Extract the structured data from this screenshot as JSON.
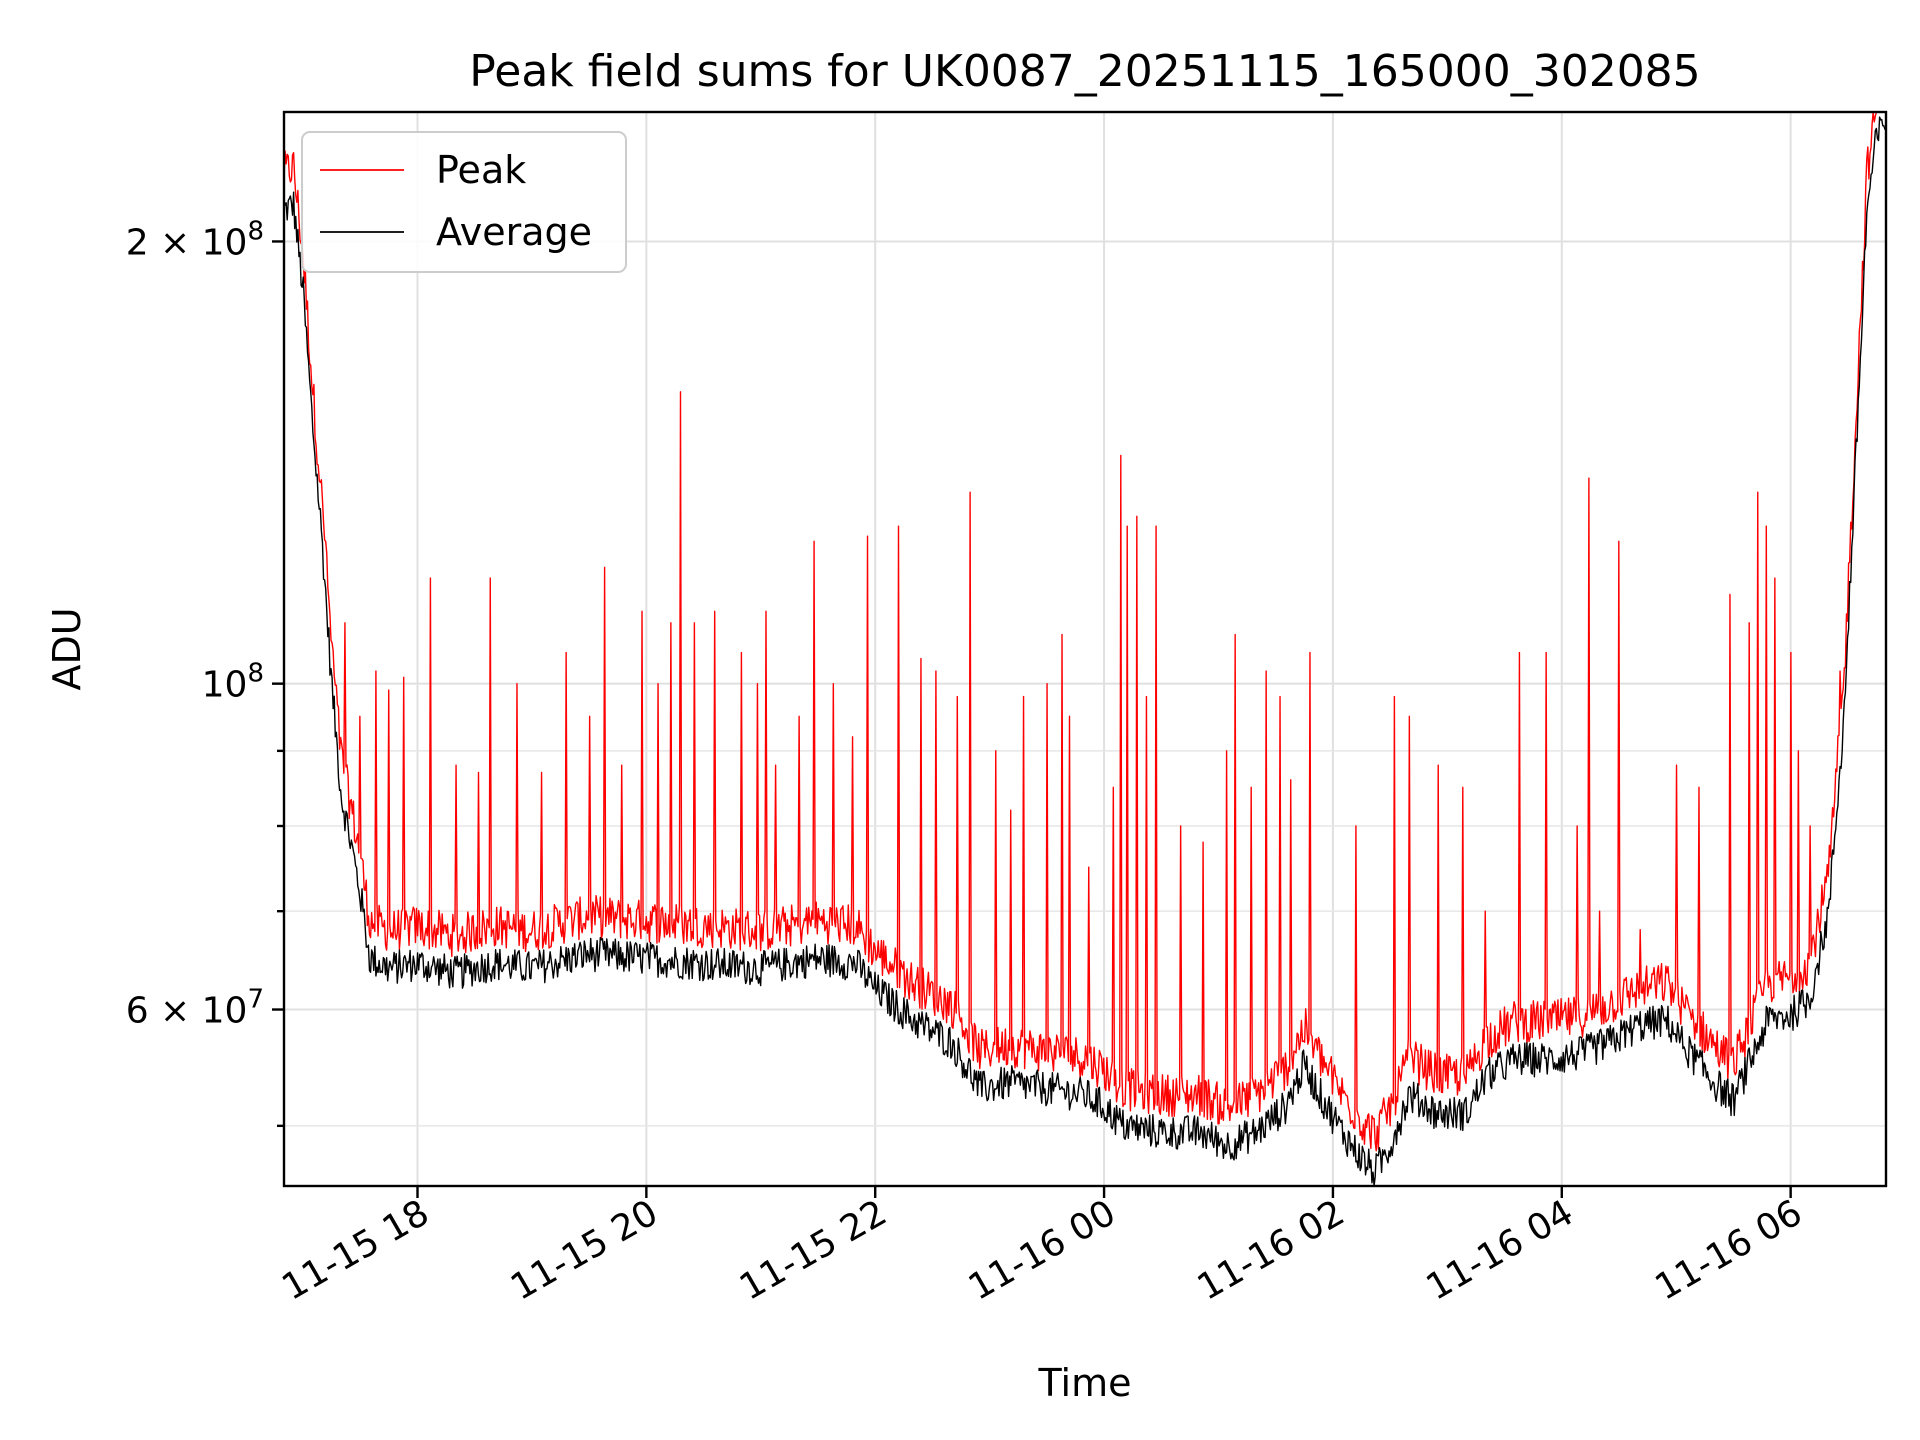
{
  "chart_data": {
    "type": "line",
    "title": "Peak field sums for UK0087_20251115_165000_302085",
    "xlabel": "Time",
    "ylabel": "ADU",
    "yscale": "log",
    "xlim": [
      "2025-11-15T16:50",
      "2025-11-16T06:50"
    ],
    "ylim": [
      45500000,
      245000000
    ],
    "grid": true,
    "legend_position": "top-left",
    "x_ticks": [
      {
        "label": "11-15 18",
        "t": "2025-11-15T18:00"
      },
      {
        "label": "11-15 20",
        "t": "2025-11-15T20:00"
      },
      {
        "label": "11-15 22",
        "t": "2025-11-15T22:00"
      },
      {
        "label": "11-16 00",
        "t": "2025-11-16T00:00"
      },
      {
        "label": "11-16 02",
        "t": "2025-11-16T02:00"
      },
      {
        "label": "11-16 04",
        "t": "2025-11-16T04:00"
      },
      {
        "label": "11-16 06",
        "t": "2025-11-16T06:00"
      }
    ],
    "y_ticks": [
      {
        "label_base": "2",
        "label_exp": "8",
        "value": 200000000
      },
      {
        "label_base": "",
        "label_exp": "8",
        "value": 100000000
      },
      {
        "label_base": "6",
        "label_exp": "7",
        "value": 60000000
      }
    ],
    "y_minor_ticks": [
      50000000,
      70000000,
      80000000,
      90000000
    ],
    "series": [
      {
        "name": "Peak",
        "color": "#ff0000",
        "baseline_offset": 1.025,
        "spikes": [
          [
            "2025-11-15T16:56",
            215000000
          ],
          [
            "2025-11-15T17:12",
            125000000
          ],
          [
            "2025-11-15T17:22",
            110000000
          ],
          [
            "2025-11-15T17:30",
            95000000
          ],
          [
            "2025-11-15T17:38",
            102000000
          ],
          [
            "2025-11-15T17:45",
            99000000
          ],
          [
            "2025-11-15T17:53",
            101000000
          ],
          [
            "2025-11-15T18:07",
            118000000
          ],
          [
            "2025-11-15T18:20",
            88000000
          ],
          [
            "2025-11-15T18:32",
            87000000
          ],
          [
            "2025-11-15T18:38",
            118000000
          ],
          [
            "2025-11-15T18:52",
            100000000
          ],
          [
            "2025-11-15T19:05",
            87000000
          ],
          [
            "2025-11-15T19:18",
            105000000
          ],
          [
            "2025-11-15T19:30",
            95000000
          ],
          [
            "2025-11-15T19:38",
            120000000
          ],
          [
            "2025-11-15T19:47",
            88000000
          ],
          [
            "2025-11-15T19:58",
            112000000
          ],
          [
            "2025-11-15T20:06",
            100000000
          ],
          [
            "2025-11-15T20:13",
            110000000
          ],
          [
            "2025-11-15T20:18",
            158000000
          ],
          [
            "2025-11-15T20:25",
            110000000
          ],
          [
            "2025-11-15T20:36",
            112000000
          ],
          [
            "2025-11-15T20:50",
            105000000
          ],
          [
            "2025-11-15T20:58",
            100000000
          ],
          [
            "2025-11-15T21:03",
            112000000
          ],
          [
            "2025-11-15T21:08",
            88000000
          ],
          [
            "2025-11-15T21:20",
            95000000
          ],
          [
            "2025-11-15T21:28",
            125000000
          ],
          [
            "2025-11-15T21:38",
            100000000
          ],
          [
            "2025-11-15T21:48",
            92000000
          ],
          [
            "2025-11-15T21:56",
            126000000
          ],
          [
            "2025-11-15T22:12",
            128000000
          ],
          [
            "2025-11-15T22:24",
            104000000
          ],
          [
            "2025-11-15T22:32",
            102000000
          ],
          [
            "2025-11-15T22:43",
            98000000
          ],
          [
            "2025-11-15T22:50",
            135000000
          ],
          [
            "2025-11-15T23:03",
            90000000
          ],
          [
            "2025-11-15T23:11",
            82000000
          ],
          [
            "2025-11-15T23:18",
            98000000
          ],
          [
            "2025-11-15T23:30",
            100000000
          ],
          [
            "2025-11-15T23:38",
            108000000
          ],
          [
            "2025-11-15T23:42",
            95000000
          ],
          [
            "2025-11-15T23:52",
            75000000
          ],
          [
            "2025-11-16T00:05",
            85000000
          ],
          [
            "2025-11-16T00:09",
            143000000
          ],
          [
            "2025-11-16T00:12",
            128000000
          ],
          [
            "2025-11-16T00:17",
            130000000
          ],
          [
            "2025-11-16T00:22",
            98000000
          ],
          [
            "2025-11-16T00:27",
            128000000
          ],
          [
            "2025-11-16T00:40",
            80000000
          ],
          [
            "2025-11-16T00:52",
            78000000
          ],
          [
            "2025-11-16T01:04",
            90000000
          ],
          [
            "2025-11-16T01:09",
            108000000
          ],
          [
            "2025-11-16T01:17",
            85000000
          ],
          [
            "2025-11-16T01:25",
            102000000
          ],
          [
            "2025-11-16T01:32",
            98000000
          ],
          [
            "2025-11-16T01:38",
            86000000
          ],
          [
            "2025-11-16T01:48",
            105000000
          ],
          [
            "2025-11-16T02:12",
            80000000
          ],
          [
            "2025-11-16T02:32",
            98000000
          ],
          [
            "2025-11-16T02:40",
            95000000
          ],
          [
            "2025-11-16T02:55",
            88000000
          ],
          [
            "2025-11-16T03:08",
            85000000
          ],
          [
            "2025-11-16T03:20",
            70000000
          ],
          [
            "2025-11-16T03:38",
            105000000
          ],
          [
            "2025-11-16T03:52",
            105000000
          ],
          [
            "2025-11-16T04:08",
            80000000
          ],
          [
            "2025-11-16T04:14",
            138000000
          ],
          [
            "2025-11-16T04:20",
            70000000
          ],
          [
            "2025-11-16T04:30",
            125000000
          ],
          [
            "2025-11-16T04:41",
            68000000
          ],
          [
            "2025-11-16T05:00",
            88000000
          ],
          [
            "2025-11-16T05:12",
            85000000
          ],
          [
            "2025-11-16T05:28",
            115000000
          ],
          [
            "2025-11-16T05:38",
            110000000
          ],
          [
            "2025-11-16T05:43",
            135000000
          ],
          [
            "2025-11-16T05:47",
            128000000
          ],
          [
            "2025-11-16T05:52",
            118000000
          ],
          [
            "2025-11-16T06:00",
            105000000
          ],
          [
            "2025-11-16T06:04",
            90000000
          ],
          [
            "2025-11-16T06:10",
            80000000
          ],
          [
            "2025-11-16T06:26",
            102000000
          ]
        ]
      },
      {
        "name": "Average",
        "color": "#000000",
        "points": [
          [
            "2025-11-15T16:50",
            210000000
          ],
          [
            "2025-11-15T16:55",
            212000000
          ],
          [
            "2025-11-15T17:00",
            185000000
          ],
          [
            "2025-11-15T17:05",
            150000000
          ],
          [
            "2025-11-15T17:10",
            125000000
          ],
          [
            "2025-11-15T17:15",
            100000000
          ],
          [
            "2025-11-15T17:20",
            84000000
          ],
          [
            "2025-11-15T17:25",
            78000000
          ],
          [
            "2025-11-15T17:30",
            72000000
          ],
          [
            "2025-11-15T17:35",
            65000000
          ],
          [
            "2025-11-15T17:45",
            64000000
          ],
          [
            "2025-11-15T18:00",
            64500000
          ],
          [
            "2025-11-15T18:20",
            63500000
          ],
          [
            "2025-11-15T18:40",
            64500000
          ],
          [
            "2025-11-15T19:00",
            64000000
          ],
          [
            "2025-11-15T19:30",
            65500000
          ],
          [
            "2025-11-15T20:00",
            65000000
          ],
          [
            "2025-11-15T20:30",
            64500000
          ],
          [
            "2025-11-15T21:00",
            64000000
          ],
          [
            "2025-11-15T21:30",
            65000000
          ],
          [
            "2025-11-15T21:50",
            64500000
          ],
          [
            "2025-11-15T22:00",
            62000000
          ],
          [
            "2025-11-15T22:20",
            59000000
          ],
          [
            "2025-11-15T22:40",
            57000000
          ],
          [
            "2025-11-15T22:55",
            53000000
          ],
          [
            "2025-11-15T23:10",
            53500000
          ],
          [
            "2025-11-15T23:30",
            53000000
          ],
          [
            "2025-11-15T23:50",
            52500000
          ],
          [
            "2025-11-16T00:00",
            51500000
          ],
          [
            "2025-11-16T00:10",
            50000000
          ],
          [
            "2025-11-16T00:30",
            49500000
          ],
          [
            "2025-11-16T00:50",
            49500000
          ],
          [
            "2025-11-16T01:05",
            48500000
          ],
          [
            "2025-11-16T01:20",
            49500000
          ],
          [
            "2025-11-16T01:35",
            51500000
          ],
          [
            "2025-11-16T01:45",
            55000000
          ],
          [
            "2025-11-16T01:55",
            52000000
          ],
          [
            "2025-11-16T02:05",
            49500000
          ],
          [
            "2025-11-16T02:15",
            47500000
          ],
          [
            "2025-11-16T02:22",
            46500000
          ],
          [
            "2025-11-16T02:30",
            48500000
          ],
          [
            "2025-11-16T02:40",
            52500000
          ],
          [
            "2025-11-16T02:55",
            51000000
          ],
          [
            "2025-11-16T03:10",
            51000000
          ],
          [
            "2025-11-16T03:20",
            54000000
          ],
          [
            "2025-11-16T03:35",
            55500000
          ],
          [
            "2025-11-16T03:55",
            55500000
          ],
          [
            "2025-11-16T04:10",
            56000000
          ],
          [
            "2025-11-16T04:25",
            57000000
          ],
          [
            "2025-11-16T04:40",
            58500000
          ],
          [
            "2025-11-16T04:55",
            59000000
          ],
          [
            "2025-11-16T05:05",
            56500000
          ],
          [
            "2025-11-16T05:20",
            53500000
          ],
          [
            "2025-11-16T05:30",
            52000000
          ],
          [
            "2025-11-16T05:38",
            55000000
          ],
          [
            "2025-11-16T05:48",
            59000000
          ],
          [
            "2025-11-16T06:00",
            59500000
          ],
          [
            "2025-11-16T06:10",
            61000000
          ],
          [
            "2025-11-16T06:20",
            70000000
          ],
          [
            "2025-11-16T06:28",
            95000000
          ],
          [
            "2025-11-16T06:35",
            150000000
          ],
          [
            "2025-11-16T06:40",
            210000000
          ],
          [
            "2025-11-16T06:45",
            235000000
          ],
          [
            "2025-11-16T06:50",
            242000000
          ]
        ]
      }
    ]
  }
}
